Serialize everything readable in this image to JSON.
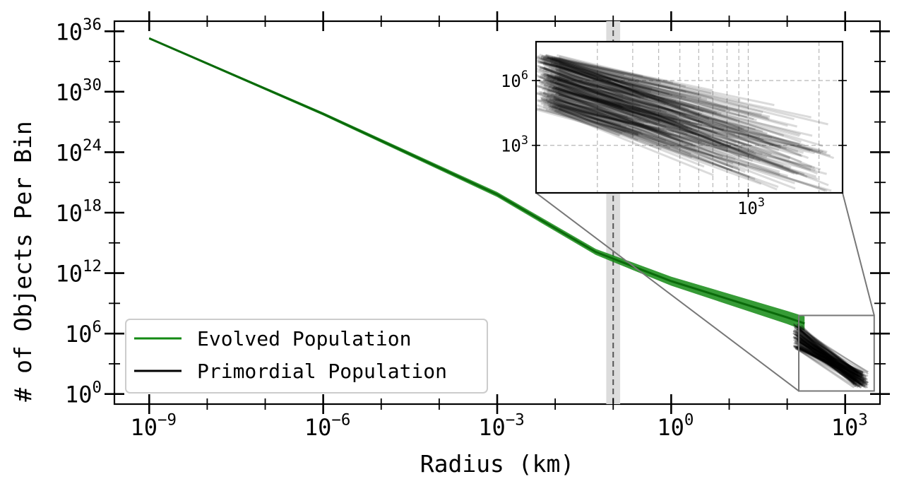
{
  "chart_data": [
    {
      "type": "line",
      "xlabel": "Radius (km)",
      "ylabel": "# of Objects Per Bin",
      "xscale": "log",
      "yscale": "log",
      "xlim_exponent": [
        -9.6,
        3.6
      ],
      "ylim_exponent": [
        -1,
        37
      ],
      "x_ticks": [
        {
          "exp": -9,
          "base": "10",
          "sup": "−9"
        },
        {
          "exp": -6,
          "base": "10",
          "sup": "−6"
        },
        {
          "exp": -3,
          "base": "10",
          "sup": "−3"
        },
        {
          "exp": 0,
          "base": "10",
          "sup": "0"
        },
        {
          "exp": 3,
          "base": "10",
          "sup": "3"
        }
      ],
      "y_ticks": [
        {
          "exp": 0,
          "base": "10",
          "sup": "0"
        },
        {
          "exp": 6,
          "base": "10",
          "sup": "6"
        },
        {
          "exp": 12,
          "base": "10",
          "sup": "12"
        },
        {
          "exp": 18,
          "base": "10",
          "sup": "18"
        },
        {
          "exp": 24,
          "base": "10",
          "sup": "24"
        },
        {
          "exp": 30,
          "base": "10",
          "sup": "30"
        },
        {
          "exp": 36,
          "base": "10",
          "sup": "36"
        }
      ],
      "series": [
        {
          "name": "Evolved Population",
          "color": "#138a13",
          "log10_points": [
            [
              -9,
              35.3
            ],
            [
              -6,
              27.8
            ],
            [
              -3,
              19.8
            ],
            [
              -1.3,
              14.1
            ],
            [
              0,
              11.2
            ],
            [
              2,
              7.6
            ],
            [
              2.3,
              7.0
            ]
          ],
          "band_half_width_decades": [
            0.1,
            0.15,
            0.25,
            0.3,
            0.45,
            0.65,
            0.7
          ]
        },
        {
          "name": "Primordial Population",
          "color": "#000000",
          "log10_x_range": [
            2.1,
            3.4
          ],
          "log10_y_start_range": [
            4.5,
            7.0
          ],
          "log10_y_end_range": [
            0.6,
            2.2
          ]
        }
      ],
      "vertical_marker": {
        "log10_x": -1.0,
        "band_log10": [
          -1.12,
          -0.88
        ],
        "style": "dashed",
        "color": "#555555",
        "band_color": "#dcdcdc"
      },
      "zoom_box": {
        "log10_x": [
          2.2,
          3.5
        ],
        "log10_y": [
          0.3,
          7.8
        ]
      },
      "legend": {
        "position": "lower-left",
        "entries": [
          "Evolved Population",
          "Primordial Population"
        ]
      },
      "inset": {
        "type": "line",
        "xscale": "log",
        "yscale": "log",
        "x_ticks": [
          {
            "exp": 3,
            "base": "10",
            "sup": "3"
          }
        ],
        "y_ticks": [
          {
            "exp": 3,
            "base": "10",
            "sup": "3"
          },
          {
            "exp": 6,
            "base": "10",
            "sup": "6"
          }
        ],
        "xlim_exponent": [
          2.1,
          3.4
        ],
        "ylim_exponent": [
          0.8,
          7.8
        ],
        "grid": true,
        "grid_x_exponents": [
          2.36,
          2.51,
          2.62,
          2.71,
          2.79,
          2.85,
          2.91,
          2.96,
          3.0,
          3.3
        ],
        "grid_y_exponents": [
          3,
          6
        ],
        "series_color": "#000000"
      }
    }
  ]
}
